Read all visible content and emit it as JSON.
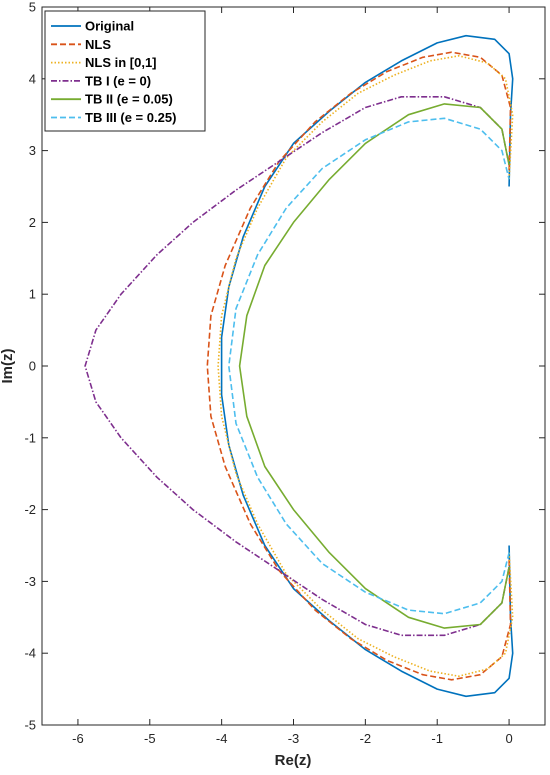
{
  "chart_data": {
    "type": "line",
    "title": "",
    "xlabel": "Re(z)",
    "ylabel": "Im(z)",
    "xlim": [
      -6.5,
      0.5
    ],
    "ylim": [
      -5,
      5
    ],
    "xticks": [
      "-6",
      "-5",
      "-4",
      "-3",
      "-2",
      "-1",
      "0"
    ],
    "yticks": [
      "-5",
      "-4",
      "-3",
      "-2",
      "-1",
      "0",
      "1",
      "2",
      "3",
      "4",
      "5"
    ],
    "grid": false,
    "legend_position": "top-left",
    "series": [
      {
        "name": "Original",
        "color": "#0072BD",
        "style": "solid",
        "points": [
          [
            0,
            -2.5
          ],
          [
            0.02,
            -3.5
          ],
          [
            0.05,
            -4.0
          ],
          [
            0.0,
            -4.35
          ],
          [
            -0.2,
            -4.55
          ],
          [
            -0.6,
            -4.6
          ],
          [
            -1.0,
            -4.5
          ],
          [
            -1.5,
            -4.25
          ],
          [
            -2.0,
            -3.95
          ],
          [
            -2.5,
            -3.55
          ],
          [
            -3.0,
            -3.1
          ],
          [
            -3.4,
            -2.5
          ],
          [
            -3.7,
            -1.8
          ],
          [
            -3.9,
            -1.1
          ],
          [
            -4.0,
            -0.4
          ],
          [
            -4.0,
            0.4
          ],
          [
            -3.9,
            1.1
          ],
          [
            -3.7,
            1.8
          ],
          [
            -3.4,
            2.5
          ],
          [
            -3.0,
            3.1
          ],
          [
            -2.5,
            3.55
          ],
          [
            -2.0,
            3.95
          ],
          [
            -1.5,
            4.25
          ],
          [
            -1.0,
            4.5
          ],
          [
            -0.6,
            4.6
          ],
          [
            -0.2,
            4.55
          ],
          [
            0.0,
            4.35
          ],
          [
            0.05,
            4.0
          ],
          [
            0.02,
            3.5
          ],
          [
            0,
            2.5
          ]
        ]
      },
      {
        "name": "NLS",
        "color": "#D95319",
        "style": "dashed",
        "points": [
          [
            0,
            -2.7
          ],
          [
            0.02,
            -3.6
          ],
          [
            -0.1,
            -4.05
          ],
          [
            -0.4,
            -4.3
          ],
          [
            -0.8,
            -4.37
          ],
          [
            -1.2,
            -4.3
          ],
          [
            -1.7,
            -4.1
          ],
          [
            -2.2,
            -3.8
          ],
          [
            -2.7,
            -3.4
          ],
          [
            -3.2,
            -2.85
          ],
          [
            -3.6,
            -2.2
          ],
          [
            -3.95,
            -1.4
          ],
          [
            -4.15,
            -0.7
          ],
          [
            -4.2,
            0.0
          ],
          [
            -4.15,
            0.7
          ],
          [
            -3.95,
            1.4
          ],
          [
            -3.6,
            2.2
          ],
          [
            -3.2,
            2.85
          ],
          [
            -2.7,
            3.4
          ],
          [
            -2.2,
            3.8
          ],
          [
            -1.7,
            4.1
          ],
          [
            -1.2,
            4.3
          ],
          [
            -0.8,
            4.37
          ],
          [
            -0.4,
            4.3
          ],
          [
            -0.1,
            4.05
          ],
          [
            0.02,
            3.6
          ],
          [
            0,
            2.7
          ]
        ]
      },
      {
        "name": "NLS in [0,1]",
        "color": "#EDB120",
        "style": "dotted",
        "points": [
          [
            0,
            -2.6
          ],
          [
            0.05,
            -3.5
          ],
          [
            -0.05,
            -4.0
          ],
          [
            -0.3,
            -4.22
          ],
          [
            -0.7,
            -4.32
          ],
          [
            -1.1,
            -4.25
          ],
          [
            -1.6,
            -4.05
          ],
          [
            -2.1,
            -3.8
          ],
          [
            -2.6,
            -3.4
          ],
          [
            -3.1,
            -2.9
          ],
          [
            -3.5,
            -2.2
          ],
          [
            -3.8,
            -1.5
          ],
          [
            -4.0,
            -0.7
          ],
          [
            -4.05,
            0.0
          ],
          [
            -4.0,
            0.7
          ],
          [
            -3.8,
            1.5
          ],
          [
            -3.5,
            2.2
          ],
          [
            -3.1,
            2.9
          ],
          [
            -2.6,
            3.4
          ],
          [
            -2.1,
            3.8
          ],
          [
            -1.6,
            4.05
          ],
          [
            -1.1,
            4.25
          ],
          [
            -0.7,
            4.32
          ],
          [
            -0.3,
            4.22
          ],
          [
            -0.05,
            4.0
          ],
          [
            0.05,
            3.5
          ],
          [
            0,
            2.6
          ]
        ]
      },
      {
        "name": "TB I (e = 0)",
        "color": "#7E2F8E",
        "style": "dashdot",
        "points": [
          [
            0,
            -2.8
          ],
          [
            -0.1,
            -3.3
          ],
          [
            -0.4,
            -3.6
          ],
          [
            -0.9,
            -3.75
          ],
          [
            -1.5,
            -3.75
          ],
          [
            -2.0,
            -3.6
          ],
          [
            -2.6,
            -3.25
          ],
          [
            -3.2,
            -2.85
          ],
          [
            -3.8,
            -2.45
          ],
          [
            -4.4,
            -2.0
          ],
          [
            -4.9,
            -1.55
          ],
          [
            -5.4,
            -1.0
          ],
          [
            -5.75,
            -0.5
          ],
          [
            -5.9,
            0.0
          ],
          [
            -5.75,
            0.5
          ],
          [
            -5.4,
            1.0
          ],
          [
            -4.9,
            1.55
          ],
          [
            -4.4,
            2.0
          ],
          [
            -3.8,
            2.45
          ],
          [
            -3.2,
            2.85
          ],
          [
            -2.6,
            3.25
          ],
          [
            -2.0,
            3.6
          ],
          [
            -1.5,
            3.75
          ],
          [
            -0.9,
            3.75
          ],
          [
            -0.4,
            3.6
          ],
          [
            -0.1,
            3.3
          ],
          [
            0,
            2.8
          ]
        ]
      },
      {
        "name": "TB II (e = 0.05)",
        "color": "#77AC30",
        "style": "solid",
        "points": [
          [
            0,
            -2.8
          ],
          [
            -0.1,
            -3.3
          ],
          [
            -0.4,
            -3.6
          ],
          [
            -0.9,
            -3.65
          ],
          [
            -1.4,
            -3.5
          ],
          [
            -2.0,
            -3.1
          ],
          [
            -2.5,
            -2.6
          ],
          [
            -3.0,
            -2.0
          ],
          [
            -3.4,
            -1.4
          ],
          [
            -3.65,
            -0.7
          ],
          [
            -3.75,
            0.0
          ],
          [
            -3.65,
            0.7
          ],
          [
            -3.4,
            1.4
          ],
          [
            -3.0,
            2.0
          ],
          [
            -2.5,
            2.6
          ],
          [
            -2.0,
            3.1
          ],
          [
            -1.4,
            3.5
          ],
          [
            -0.9,
            3.65
          ],
          [
            -0.4,
            3.6
          ],
          [
            -0.1,
            3.3
          ],
          [
            0,
            2.8
          ]
        ]
      },
      {
        "name": "TB III (e = 0.25)",
        "color": "#4DBEEE",
        "style": "dashed",
        "points": [
          [
            0,
            -2.6
          ],
          [
            -0.1,
            -3.0
          ],
          [
            -0.4,
            -3.3
          ],
          [
            -0.9,
            -3.45
          ],
          [
            -1.4,
            -3.4
          ],
          [
            -2.0,
            -3.15
          ],
          [
            -2.6,
            -2.75
          ],
          [
            -3.1,
            -2.2
          ],
          [
            -3.5,
            -1.55
          ],
          [
            -3.8,
            -0.8
          ],
          [
            -3.9,
            0.0
          ],
          [
            -3.8,
            0.8
          ],
          [
            -3.5,
            1.55
          ],
          [
            -3.1,
            2.2
          ],
          [
            -2.6,
            2.75
          ],
          [
            -2.0,
            3.15
          ],
          [
            -1.4,
            3.4
          ],
          [
            -0.9,
            3.45
          ],
          [
            -0.4,
            3.3
          ],
          [
            -0.1,
            3.0
          ],
          [
            0,
            2.6
          ]
        ]
      }
    ]
  }
}
